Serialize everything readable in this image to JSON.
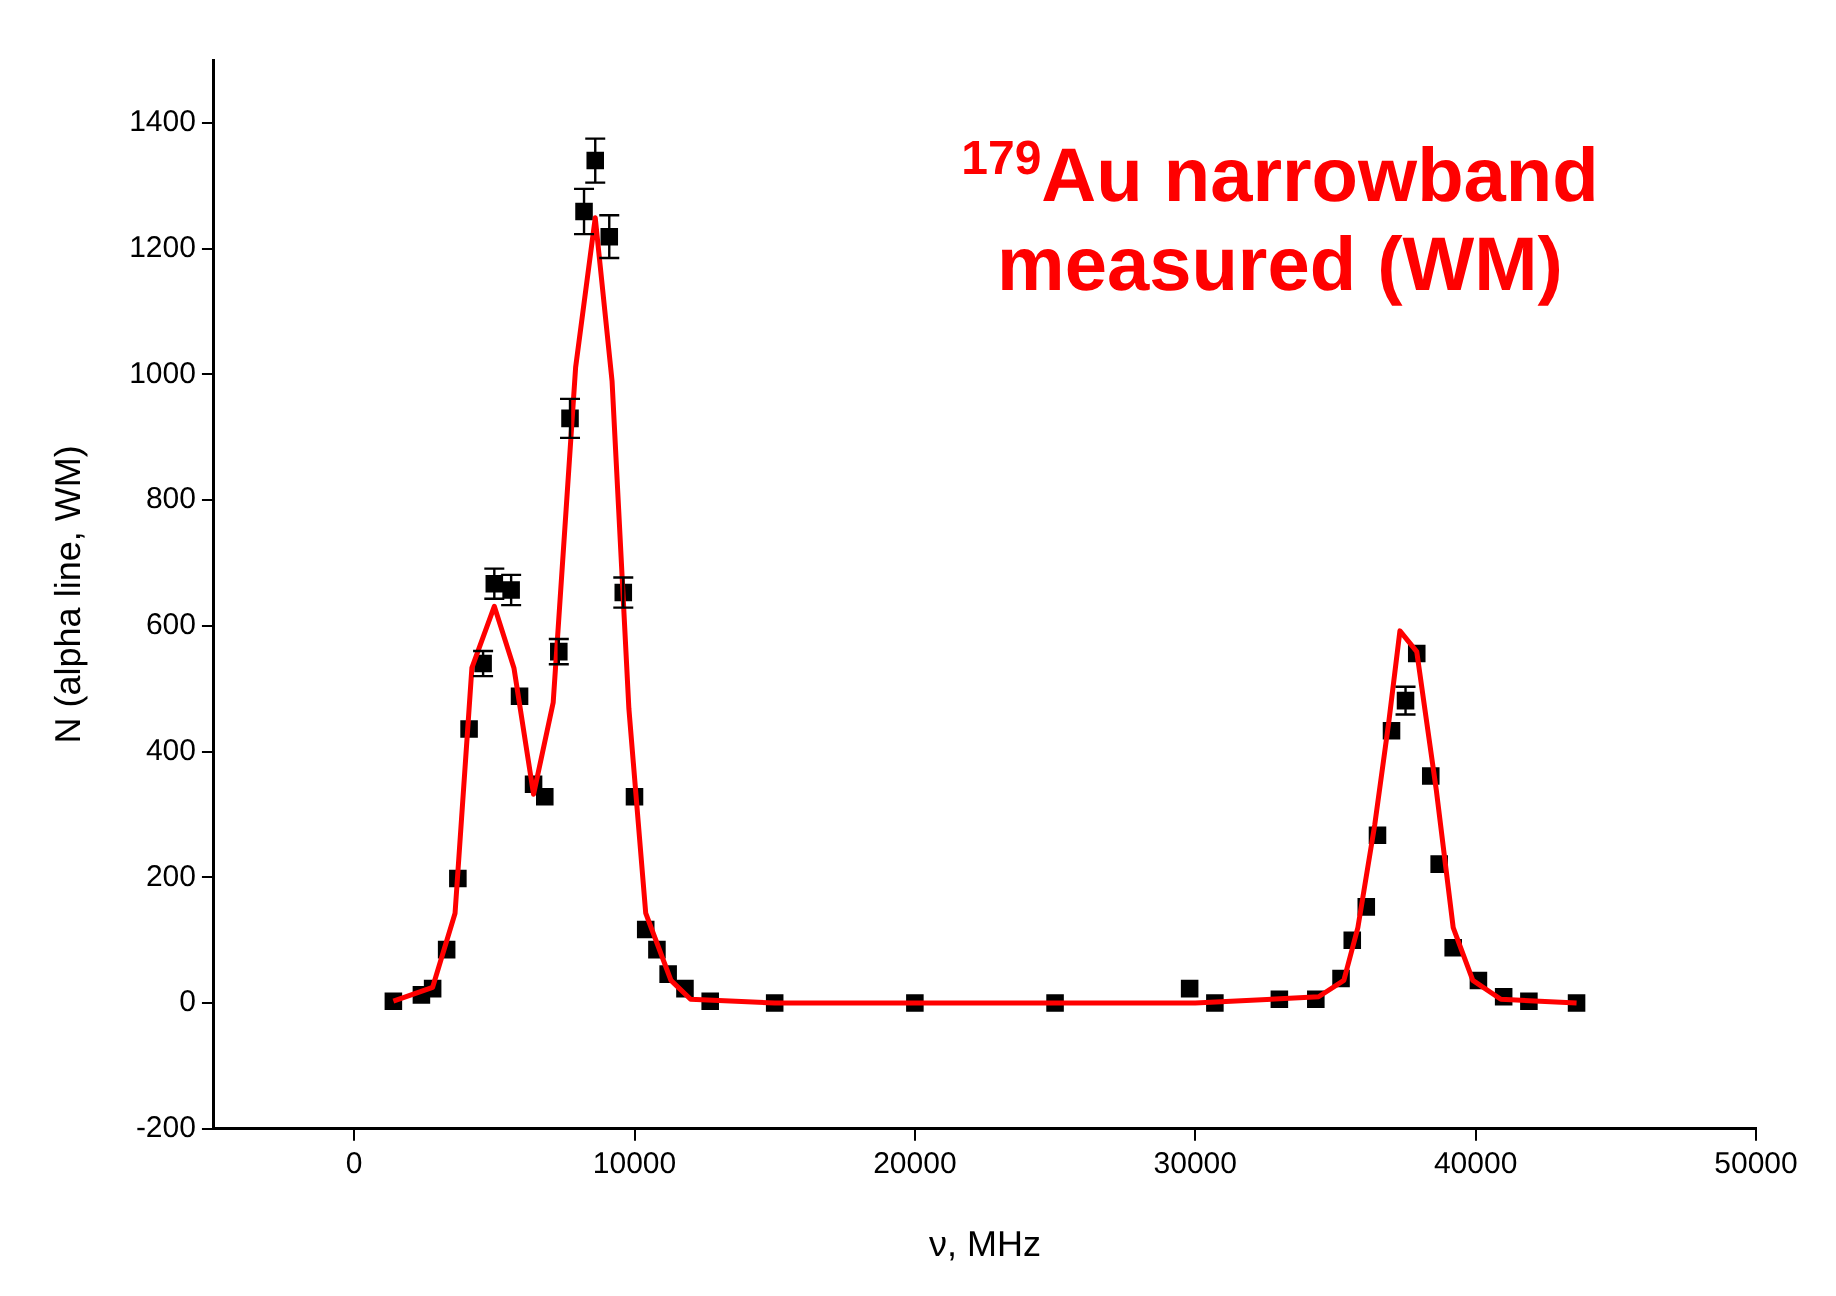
{
  "chart_data": {
    "type": "scatter",
    "title": "$^{179}$Au narrowband measured (WM)",
    "xlabel": "ν, MHz",
    "ylabel": "N (alpha line, WM)",
    "xlim": [
      -5000,
      50000
    ],
    "ylim": [
      -200,
      1500
    ],
    "xticks": [
      0,
      10000,
      20000,
      30000,
      40000,
      50000
    ],
    "yticks": [
      -200,
      0,
      200,
      400,
      600,
      800,
      1000,
      1200,
      1400
    ],
    "grid": false,
    "legend": false,
    "series": [
      {
        "type": "scatter",
        "color": "#000000",
        "marker": "square",
        "x": [
          1400,
          2400,
          2800,
          3300,
          3700,
          4100,
          4600,
          5000,
          5600,
          5900,
          6400,
          6800,
          7300,
          7700,
          8200,
          8600,
          9100,
          9600,
          10000,
          10400,
          10800,
          11200,
          11800,
          12700,
          15000,
          20000,
          25000,
          29800,
          30700,
          33000,
          34300,
          35200,
          35600,
          36100,
          36500,
          37000,
          37500,
          37900,
          38400,
          38700,
          39200,
          40100,
          41000,
          41900,
          43600
        ],
        "values": [
          3,
          13,
          23,
          85,
          198,
          436,
          540,
          667,
          657,
          488,
          348,
          328,
          559,
          930,
          1259,
          1340,
          1219,
          653,
          328,
          117,
          85,
          46,
          23,
          3,
          0,
          0,
          0,
          23,
          0,
          6,
          6,
          39,
          100,
          153,
          267,
          433,
          481,
          556,
          361,
          221,
          88,
          36,
          10,
          3,
          0
        ],
        "errors": [
          null,
          null,
          null,
          null,
          null,
          null,
          20,
          24,
          24,
          null,
          null,
          null,
          20,
          31,
          36,
          35,
          34,
          24,
          null,
          null,
          null,
          null,
          null,
          null,
          null,
          null,
          null,
          null,
          null,
          null,
          null,
          null,
          null,
          null,
          null,
          null,
          22,
          null,
          null,
          null,
          null,
          null,
          null,
          null,
          null
        ]
      },
      {
        "type": "line",
        "color": "#ff0000",
        "marker": "none",
        "line_style": "solid",
        "x": [
          1400,
          2800,
          3600,
          4200,
          5000,
          5700,
          6400,
          7100,
          7900,
          8600,
          9200,
          9800,
          10400,
          11300,
          12000,
          15000,
          20000,
          25000,
          30000,
          34400,
          35300,
          35800,
          36400,
          36900,
          37300,
          37900,
          38600,
          39200,
          39900,
          40900,
          43600
        ],
        "values": [
          3,
          25,
          143,
          533,
          631,
          533,
          332,
          478,
          1011,
          1249,
          989,
          468,
          143,
          36,
          6,
          0,
          0,
          0,
          0,
          10,
          36,
          120,
          283,
          446,
          592,
          559,
          338,
          120,
          36,
          6,
          0
        ]
      }
    ]
  }
}
